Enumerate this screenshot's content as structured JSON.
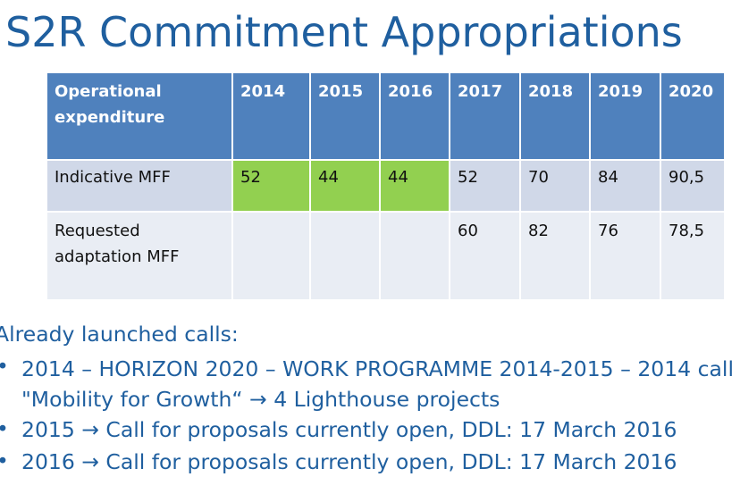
{
  "title": "S2R Commitment Appropriations",
  "table": {
    "header": [
      "Operational expenditure",
      "2014",
      "2015",
      "2016",
      "2017",
      "2018",
      "2019",
      "2020"
    ],
    "rows": [
      {
        "label": "Indicative MFF",
        "cells": [
          "52",
          "44",
          "44",
          "52",
          "70",
          "84",
          "90,5"
        ]
      },
      {
        "label": "Requested adaptation MFF",
        "cells": [
          "",
          "",
          "",
          "60",
          "82",
          "76",
          "78,5"
        ]
      }
    ],
    "highlight_color": "#92d050",
    "header_color": "#4f81bd"
  },
  "calls": {
    "heading": "Already launched calls:",
    "bullet": "•",
    "items": [
      {
        "line1": "2014 – HORIZON 2020 – WORK PROGRAMME 2014-2015 – 2014 call",
        "line2": "\"Mobility for Growth“ → 4 Lighthouse projects"
      },
      {
        "line1": "2015 → Call for proposals currently open, DDL: 17 March 2016"
      },
      {
        "line1": "2016 → Call for proposals currently open, DDL: 17 March 2016"
      }
    ]
  },
  "colors": {
    "title": "#1f5f9f",
    "text": "#1f5f9f"
  }
}
